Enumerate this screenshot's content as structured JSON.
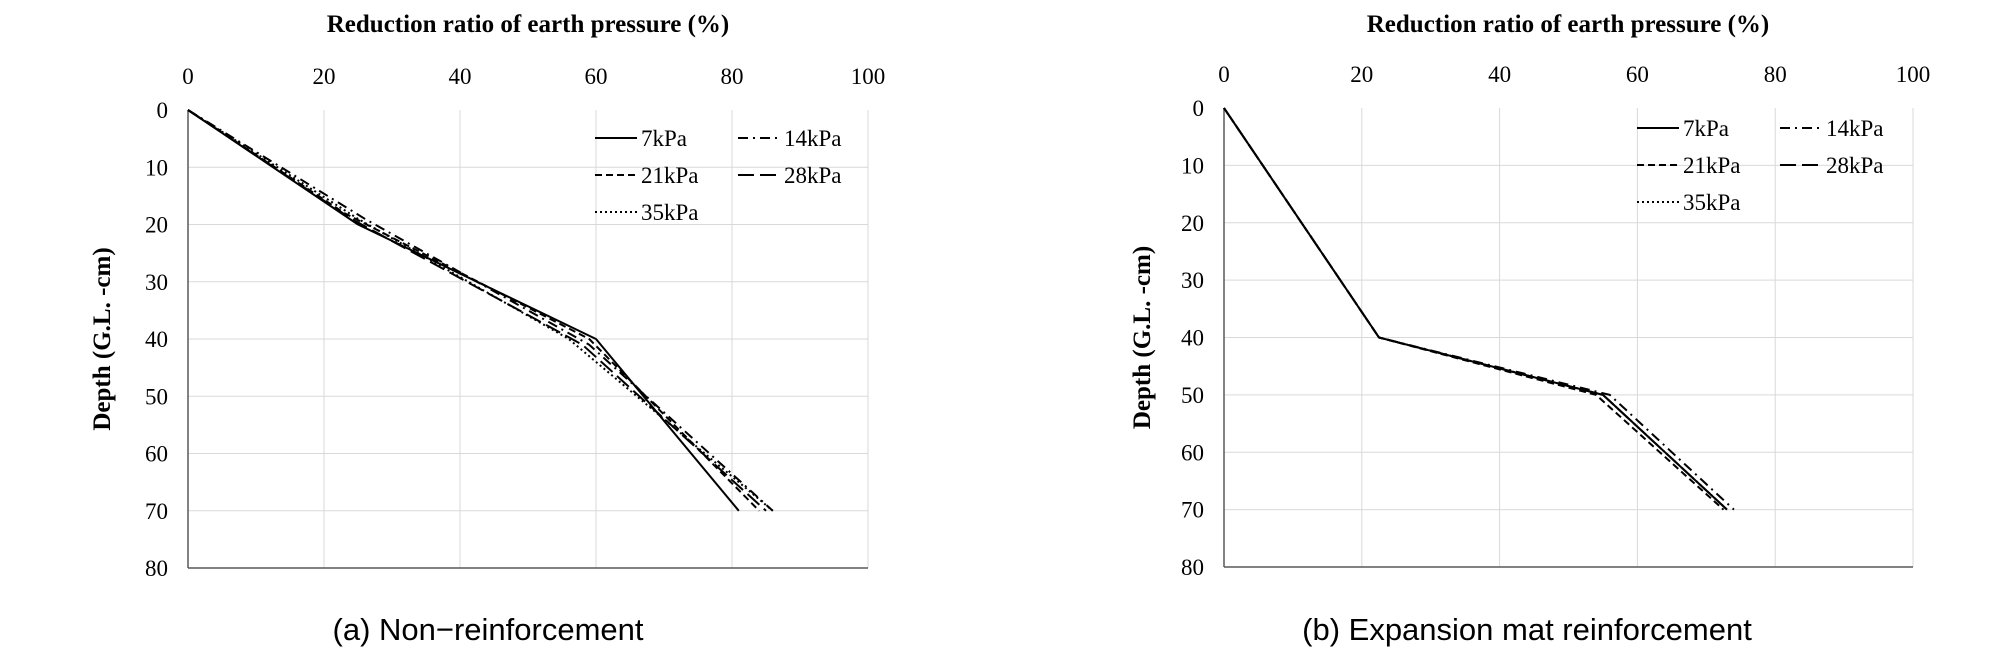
{
  "chart_data": [
    {
      "type": "line",
      "panel_caption": "(a) Non−reinforcement",
      "xlabel": "Reduction ratio of earth pressure (%)",
      "ylabel": "Depth (G.L. -cm)",
      "xlim": [
        0,
        100
      ],
      "ylim": [
        0,
        80
      ],
      "y_inverted": true,
      "x_axis_position": "top",
      "xticks": [
        "0",
        "20",
        "40",
        "60",
        "80",
        "100"
      ],
      "yticks": [
        "0",
        "10",
        "20",
        "30",
        "40",
        "50",
        "60",
        "70",
        "80"
      ],
      "grid": true,
      "legend_position": "top-right",
      "series": [
        {
          "name": "7kPa",
          "dash": "solid",
          "points": [
            [
              0,
              0
            ],
            [
              25,
              20
            ],
            [
              60,
              40
            ],
            [
              81,
              70
            ]
          ]
        },
        {
          "name": "14kPa",
          "dash": "dashdot",
          "points": [
            [
              0,
              0
            ],
            [
              26,
              19
            ],
            [
              59,
              41
            ],
            [
              86,
              70
            ]
          ]
        },
        {
          "name": "21kPa",
          "dash": "dash",
          "points": [
            [
              0,
              0
            ],
            [
              23,
              18
            ],
            [
              59,
              40
            ],
            [
              84,
              70
            ]
          ]
        },
        {
          "name": "28kPa",
          "dash": "longdash",
          "points": [
            [
              0,
              0
            ],
            [
              24,
              19
            ],
            [
              58,
              41
            ],
            [
              85,
              70
            ]
          ]
        },
        {
          "name": "35kPa",
          "dash": "dotted",
          "points": [
            [
              0,
              0
            ],
            [
              25,
              19
            ],
            [
              56,
              40
            ],
            [
              86,
              70
            ]
          ]
        }
      ]
    },
    {
      "type": "line",
      "panel_caption": "(b) Expansion mat reinforcement",
      "xlabel": "Reduction ratio of earth pressure (%)",
      "ylabel": "Depth (G.L. -cm)",
      "xlim": [
        0,
        100
      ],
      "ylim": [
        0,
        80
      ],
      "y_inverted": true,
      "x_axis_position": "top",
      "xticks": [
        "0",
        "20",
        "40",
        "60",
        "80",
        "100"
      ],
      "yticks": [
        "0",
        "10",
        "20",
        "30",
        "40",
        "50",
        "60",
        "70",
        "80"
      ],
      "grid": true,
      "legend_position": "top-right",
      "series": [
        {
          "name": "7kPa",
          "dash": "solid",
          "points": [
            [
              0,
              0
            ],
            [
              22.5,
              40
            ],
            [
              55,
              50
            ],
            [
              73,
              70
            ]
          ]
        },
        {
          "name": "14kPa",
          "dash": "dashdot",
          "points": [
            [
              0,
              0
            ],
            [
              22.5,
              40
            ],
            [
              56,
              50
            ],
            [
              74,
              70
            ]
          ]
        },
        {
          "name": "21kPa",
          "dash": "dash",
          "points": [
            [
              0,
              0
            ],
            [
              22.5,
              40
            ],
            [
              54,
              50
            ],
            [
              72.5,
              70
            ]
          ]
        },
        {
          "name": "28kPa",
          "dash": "longdash",
          "points": [
            [
              0,
              0
            ],
            [
              22.5,
              40
            ],
            [
              55,
              50
            ],
            [
              73,
              70
            ]
          ]
        },
        {
          "name": "35kPa",
          "dash": "dotted",
          "points": [
            [
              0,
              0
            ],
            [
              22.5,
              40
            ],
            [
              55,
              50
            ],
            [
              73,
              70
            ]
          ]
        }
      ]
    }
  ],
  "colors": {
    "line": "#000000",
    "grid": "#d9d9d9",
    "axis": "#595959",
    "text": "#000000"
  }
}
